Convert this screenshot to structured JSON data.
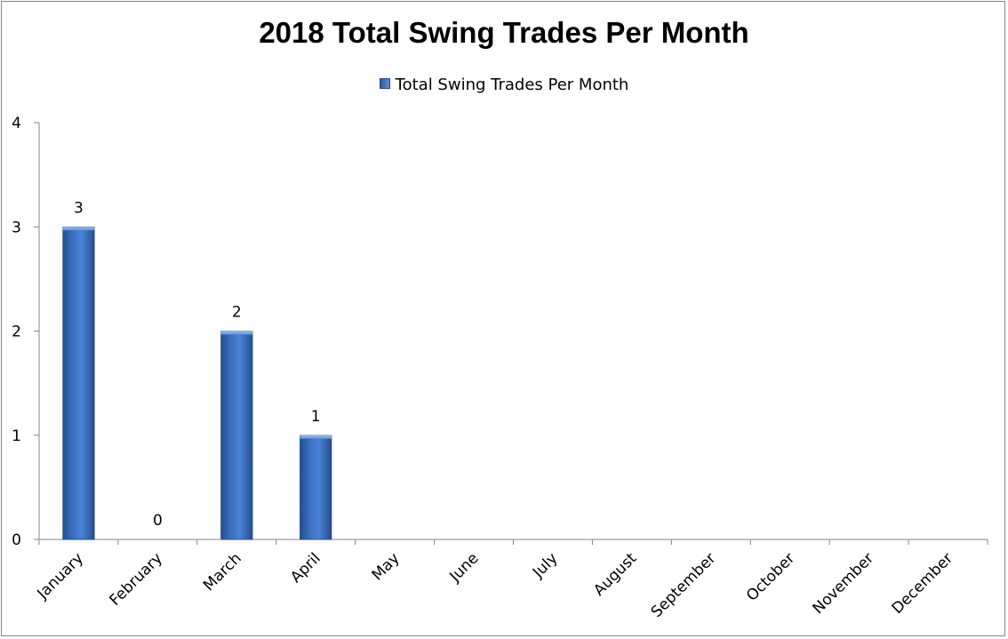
{
  "chart_data": {
    "type": "bar",
    "title": "2018 Total Swing Trades Per Month",
    "categories": [
      "January",
      "February",
      "March",
      "April",
      "May",
      "June",
      "July",
      "August",
      "September",
      "October",
      "November",
      "December"
    ],
    "series": [
      {
        "name": "Total Swing Trades Per Month",
        "values": [
          3,
          0,
          2,
          1,
          null,
          null,
          null,
          null,
          null,
          null,
          null,
          null
        ],
        "color": "#4f81bd"
      }
    ],
    "data_labels": [
      "3",
      "0",
      "2",
      "1",
      "",
      "",
      "",
      "",
      "",
      "",
      "",
      ""
    ],
    "y_ticks": [
      "0",
      "1",
      "2",
      "3",
      "4"
    ],
    "ylim": [
      0,
      4
    ],
    "xlabel": "",
    "ylabel": "",
    "grid": false,
    "legend_position": "top"
  }
}
